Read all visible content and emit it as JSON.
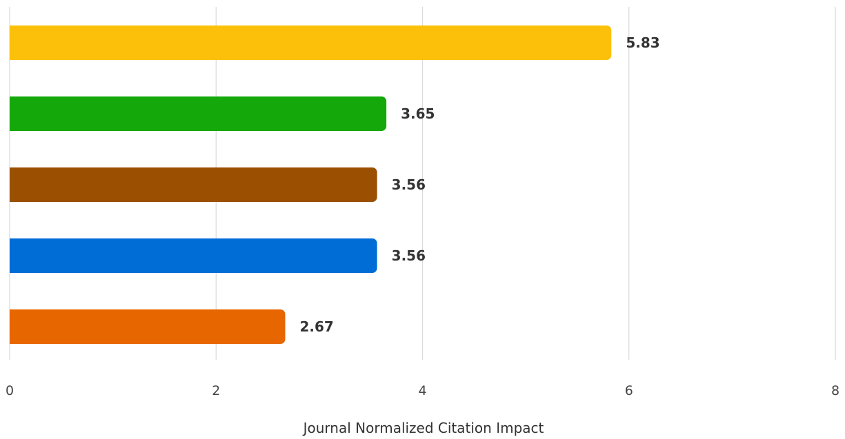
{
  "chart_data": {
    "type": "bar",
    "orientation": "horizontal",
    "xlabel": "Journal Normalized Citation Impact",
    "ylabel": "",
    "xlim": [
      0,
      8
    ],
    "ticks": [
      "0",
      "2",
      "4",
      "6",
      "8"
    ],
    "grid": true,
    "legend": "none",
    "bars": [
      {
        "value": 5.83,
        "label": "5.83",
        "color": "#fcc00a"
      },
      {
        "value": 3.65,
        "label": "3.65",
        "color": "#14a80a"
      },
      {
        "value": 3.56,
        "label": "3.56",
        "color": "#9a5000"
      },
      {
        "value": 3.56,
        "label": "3.56",
        "color": "#006dd6"
      },
      {
        "value": 2.67,
        "label": "2.67",
        "color": "#e86600"
      }
    ]
  }
}
